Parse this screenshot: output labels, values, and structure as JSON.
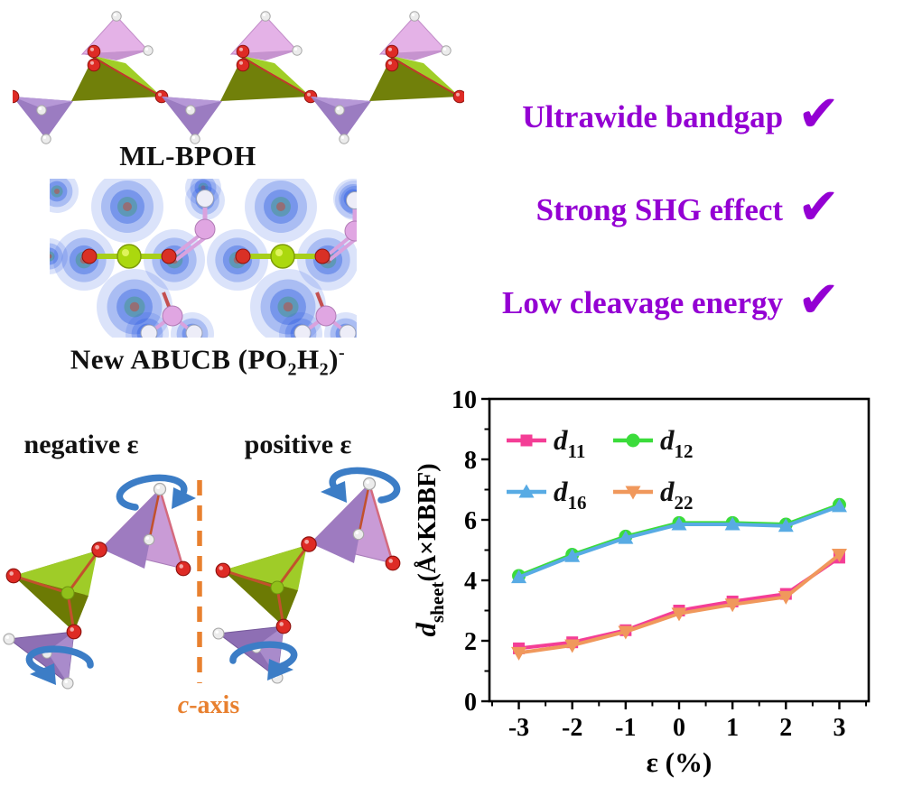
{
  "structures": {
    "ml_bpoh_label": "ML-BPOH",
    "abucb": {
      "p1": "New ABUCB (PO",
      "sub1": "2",
      "p2": "H",
      "sub2": "2",
      "p3": ")",
      "sup": "-"
    }
  },
  "checklist": {
    "check_icon": "✔",
    "color": "#9400D3",
    "items": [
      {
        "label": "Ultrawide bandgap"
      },
      {
        "label": "Strong SHG effect"
      },
      {
        "label": "Low cleavage energy"
      }
    ]
  },
  "strain": {
    "negative_label": "negative ε",
    "positive_label": "positive ε",
    "c_italic": "c",
    "axis_suffix": "-axis",
    "axis_color": "#E8802F",
    "arrow_color": "#3C7DC6"
  },
  "chart_data": {
    "type": "line",
    "x": [
      -3,
      -2,
      -1,
      0,
      1,
      2,
      3
    ],
    "series": [
      {
        "name": "d11",
        "label_main": "d",
        "label_sub": "11",
        "color": "#F43E96",
        "marker": "square",
        "values": [
          1.75,
          1.95,
          2.35,
          3.0,
          3.3,
          3.55,
          4.75
        ]
      },
      {
        "name": "d12",
        "label_main": "d",
        "label_sub": "12",
        "color": "#3BDC3B",
        "marker": "circle",
        "values": [
          4.15,
          4.85,
          5.45,
          5.9,
          5.9,
          5.85,
          6.5
        ]
      },
      {
        "name": "d16",
        "label_main": "d",
        "label_sub": "16",
        "color": "#58ABE4",
        "marker": "triangle-up",
        "values": [
          4.1,
          4.8,
          5.4,
          5.85,
          5.85,
          5.8,
          6.45
        ]
      },
      {
        "name": "d22",
        "label_main": "d",
        "label_sub": "22",
        "color": "#F0985C",
        "marker": "triangle-down",
        "values": [
          1.6,
          1.85,
          2.3,
          2.9,
          3.2,
          3.45,
          4.85
        ]
      }
    ],
    "xlabel": "ε (%)",
    "ylabel_main": "d",
    "ylabel_sub": "sheet",
    "ylabel_rest": "(Å×KBBF)",
    "xlim": [
      -3.55,
      3.55
    ],
    "ylim": [
      0,
      10
    ],
    "x_ticks": [
      -3,
      -2,
      -1,
      0,
      1,
      2,
      3
    ],
    "x_minor_ticks": [
      -3.5,
      -2.5,
      -1.5,
      -0.5,
      0.5,
      1.5,
      2.5,
      3.5
    ],
    "y_ticks": [
      0,
      2,
      4,
      6,
      8,
      10
    ],
    "y_minor_ticks": [
      1,
      3,
      5,
      7,
      9
    ],
    "grid": false,
    "legend_position": "inside-top-left"
  }
}
